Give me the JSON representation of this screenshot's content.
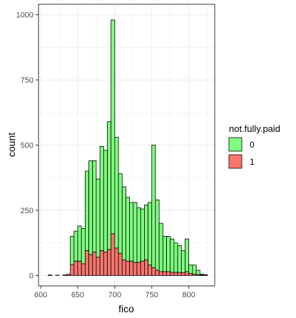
{
  "chart_data": {
    "type": "bar",
    "subtype": "stacked-histogram",
    "title": "",
    "xlabel": "fico",
    "ylabel": "count",
    "xlim": [
      597,
      835
    ],
    "ylim": [
      -40,
      1040
    ],
    "xticks": [
      600,
      650,
      700,
      750,
      800
    ],
    "yticks": [
      0,
      250,
      500,
      750,
      1000
    ],
    "grid": true,
    "legend": {
      "title": "not.fully.paid",
      "position": "right",
      "entries": [
        {
          "label": "0",
          "color": "#7fff7f"
        },
        {
          "label": "1",
          "color": "#f8766d"
        }
      ]
    },
    "bin_width": 5,
    "bin_starts": [
      610,
      615,
      620,
      625,
      630,
      635,
      640,
      645,
      650,
      655,
      660,
      665,
      670,
      675,
      680,
      685,
      690,
      695,
      700,
      705,
      710,
      715,
      720,
      725,
      730,
      735,
      740,
      745,
      750,
      755,
      760,
      765,
      770,
      775,
      780,
      785,
      790,
      795,
      800,
      805,
      810,
      815,
      820
    ],
    "series": [
      {
        "name": "1",
        "color": "#f8766d",
        "values": [
          2,
          0,
          1,
          0,
          2,
          5,
          42,
          55,
          55,
          45,
          95,
          80,
          90,
          70,
          95,
          90,
          100,
          160,
          105,
          85,
          60,
          55,
          55,
          50,
          50,
          55,
          60,
          40,
          30,
          20,
          15,
          15,
          15,
          12,
          12,
          12,
          10,
          15,
          8,
          5,
          3,
          2,
          1
        ]
      },
      {
        "name": "0",
        "color": "#7fff7f",
        "values": [
          0,
          0,
          0,
          0,
          0,
          0,
          108,
          115,
          135,
          135,
          305,
          360,
          350,
          300,
          400,
          390,
          490,
          820,
          425,
          305,
          280,
          245,
          225,
          230,
          210,
          200,
          210,
          240,
          470,
          270,
          185,
          135,
          135,
          128,
          113,
          103,
          85,
          125,
          32,
          35,
          17,
          3,
          2
        ]
      }
    ]
  }
}
